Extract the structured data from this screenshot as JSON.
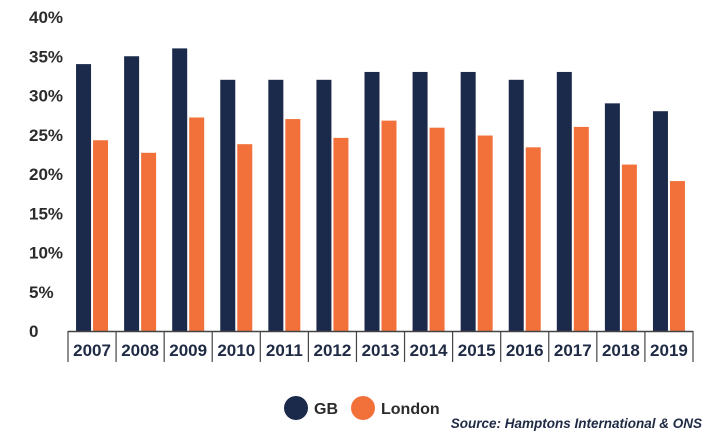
{
  "chart_data": {
    "type": "bar",
    "categories": [
      "2007",
      "2008",
      "2009",
      "2010",
      "2011",
      "2012",
      "2013",
      "2014",
      "2015",
      "2016",
      "2017",
      "2018",
      "2019"
    ],
    "series": [
      {
        "name": "GB",
        "values": [
          34,
          35,
          36,
          32,
          32,
          32,
          33,
          33,
          33,
          32,
          33,
          29,
          28
        ],
        "color": "#1b2a4a"
      },
      {
        "name": "London",
        "values": [
          24.3,
          22.7,
          27.2,
          23.8,
          27.0,
          24.6,
          26.8,
          25.9,
          24.9,
          23.4,
          26.0,
          21.2,
          19.1
        ],
        "color": "#f2713a"
      }
    ],
    "yticks": [
      "40%",
      "35%",
      "30%",
      "25%",
      "20%",
      "15%",
      "10%",
      "5%",
      "0"
    ],
    "ylim": [
      0,
      40
    ],
    "grid": false,
    "legend_position": "bottom-center",
    "source": "Source: Hamptons International & ONS"
  }
}
